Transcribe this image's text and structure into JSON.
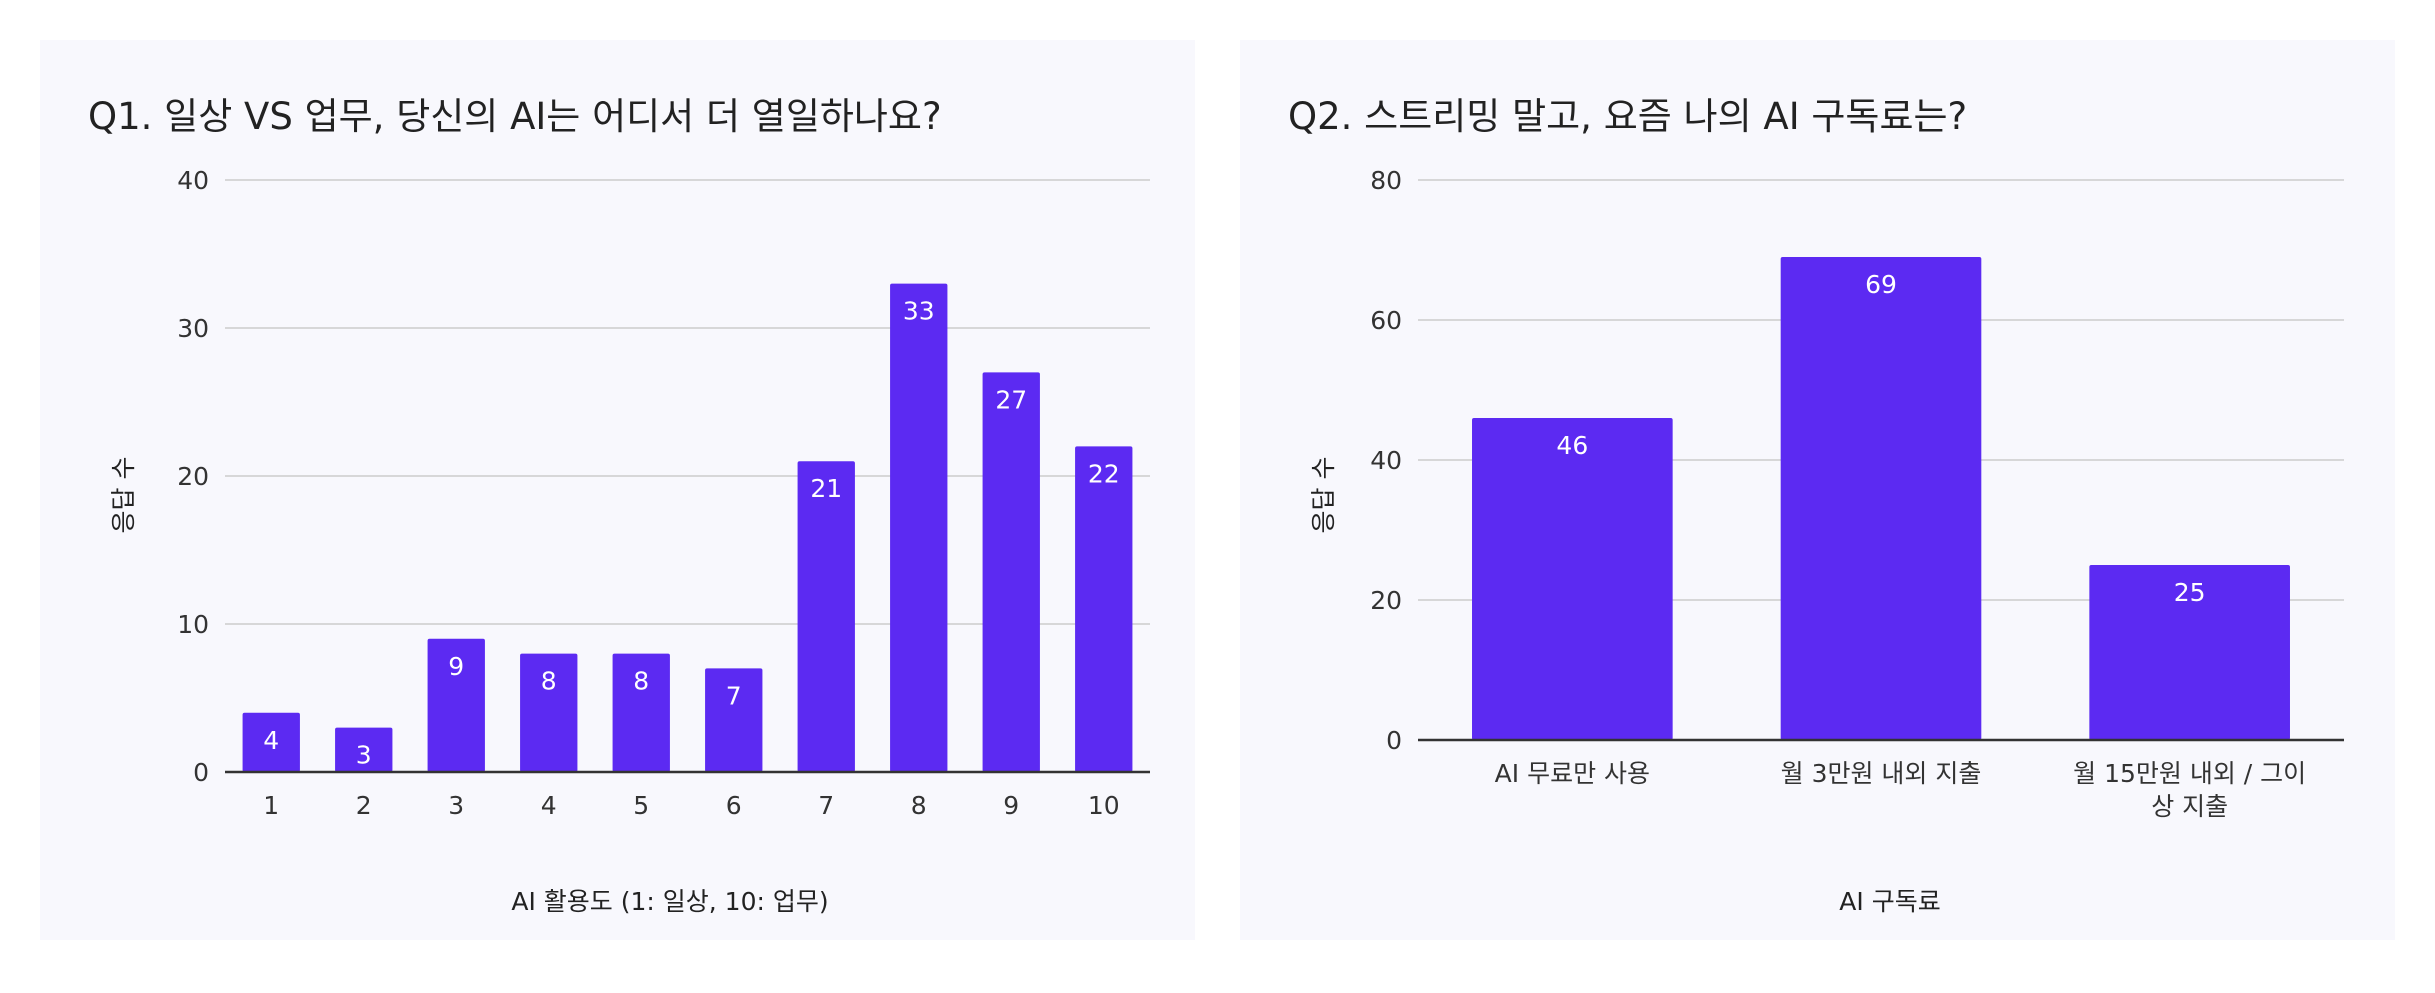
{
  "chart_data": [
    {
      "type": "bar",
      "title": "Q1. 일상 VS 업무, 당신의 AI는 어디서 더 열일하나요?",
      "xlabel": "AI 활용도 (1: 일상, 10: 업무)",
      "ylabel": "응답 수",
      "categories": [
        "1",
        "2",
        "3",
        "4",
        "5",
        "6",
        "7",
        "8",
        "9",
        "10"
      ],
      "values": [
        4,
        3,
        9,
        8,
        8,
        7,
        21,
        33,
        27,
        22
      ],
      "ylim": [
        0,
        40
      ],
      "yticks": [
        0,
        10,
        20,
        30,
        40
      ],
      "grid": true,
      "color": "#5c2af2"
    },
    {
      "type": "bar",
      "title": "Q2. 스트리밍 말고, 요즘 나의 AI 구독료는?",
      "xlabel": "AI 구독료",
      "ylabel": "응답 수",
      "categories": [
        "AI 무료만 사용",
        "월 3만원 내외 지출",
        "월 15만원 내외 / 그이상 지출"
      ],
      "category_lines": [
        [
          "AI 무료만 사용"
        ],
        [
          "월 3만원 내외 지출"
        ],
        [
          "월 15만원 내외 / 그이",
          "상 지출"
        ]
      ],
      "values": [
        46,
        69,
        25
      ],
      "ylim": [
        0,
        80
      ],
      "yticks": [
        0,
        20,
        40,
        60,
        80
      ],
      "grid": true,
      "color": "#5c2af2"
    }
  ]
}
